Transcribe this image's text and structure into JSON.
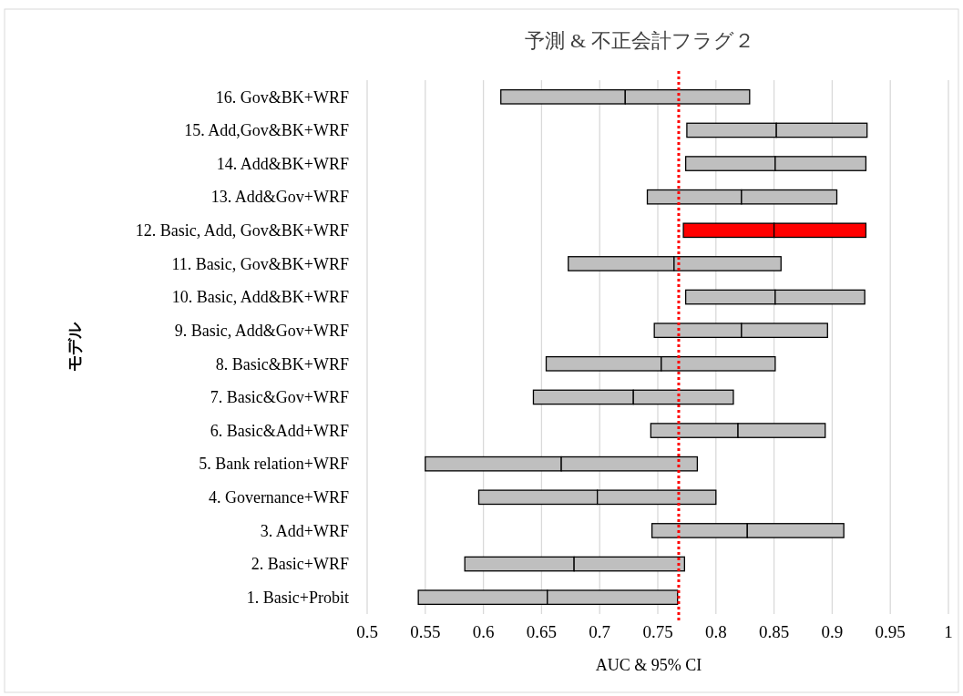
{
  "chart_data": {
    "type": "bar",
    "orientation": "horizontal",
    "title": "予測 & 不正会計フラグ２",
    "xlabel": "AUC & 95% CI",
    "ylabel": "モデル",
    "categories": [
      "16. Gov&BK+WRF",
      "15. Add,Gov&BK+WRF",
      "14. Add&BK+WRF",
      "13. Add&Gov+WRF",
      "12. Basic, Add, Gov&BK+WRF",
      "11. Basic, Gov&BK+WRF",
      "10. Basic, Add&BK+WRF",
      "9. Basic, Add&Gov+WRF",
      "8. Basic&BK+WRF",
      "7. Basic&Gov+WRF",
      "6. Basic&Add+WRF",
      "5. Bank relation+WRF",
      "4. Governance+WRF",
      "3. Add+WRF",
      "2. Basic+WRF",
      "1. Basic+Probit"
    ],
    "series": [
      {
        "colors": [
          "#bfbfbf",
          "#bfbfbf",
          "#bfbfbf",
          "#bfbfbf",
          "#ff0000",
          "#bfbfbf",
          "#bfbfbf",
          "#bfbfbf",
          "#bfbfbf",
          "#bfbfbf",
          "#bfbfbf",
          "#bfbfbf",
          "#bfbfbf",
          "#bfbfbf",
          "#bfbfbf",
          "#bfbfbf"
        ],
        "base": [
          0.615,
          0.775,
          0.774,
          0.741,
          0.772,
          0.673,
          0.774,
          0.747,
          0.654,
          0.643,
          0.744,
          0.55,
          0.596,
          0.745,
          0.584,
          0.544
        ],
        "values": [
          0.107,
          0.077,
          0.077,
          0.081,
          0.078,
          0.091,
          0.077,
          0.075,
          0.099,
          0.086,
          0.075,
          0.117,
          0.102,
          0.082,
          0.094,
          0.111
        ]
      },
      {
        "colors": [
          "#bfbfbf",
          "#bfbfbf",
          "#bfbfbf",
          "#bfbfbf",
          "#ff0000",
          "#bfbfbf",
          "#bfbfbf",
          "#bfbfbf",
          "#bfbfbf",
          "#bfbfbf",
          "#bfbfbf",
          "#bfbfbf",
          "#bfbfbf",
          "#bfbfbf",
          "#bfbfbf",
          "#bfbfbf"
        ],
        "base": [
          0.722,
          0.852,
          0.851,
          0.822,
          0.85,
          0.764,
          0.851,
          0.822,
          0.753,
          0.729,
          0.819,
          0.667,
          0.698,
          0.827,
          0.678,
          0.655
        ],
        "values": [
          0.107,
          0.078,
          0.078,
          0.082,
          0.079,
          0.092,
          0.077,
          0.074,
          0.098,
          0.086,
          0.075,
          0.117,
          0.102,
          0.083,
          0.095,
          0.112
        ]
      }
    ],
    "xlim": [
      0.5,
      1
    ],
    "xticks": [
      0.5,
      0.55,
      0.6,
      0.65,
      0.7,
      0.75,
      0.8,
      0.85,
      0.9,
      0.95,
      1
    ],
    "grid": "x",
    "ref_lines": [
      {
        "axis": "x",
        "value": 0.768,
        "color": "#ff0000",
        "line_style": "dotted"
      }
    ]
  }
}
